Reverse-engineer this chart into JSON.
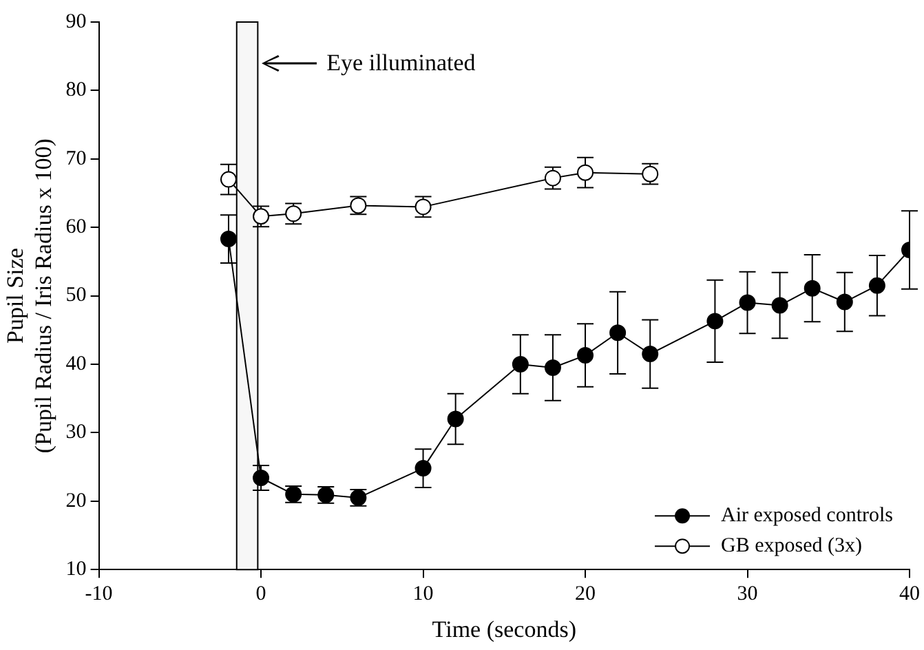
{
  "chart_data": {
    "type": "line",
    "xlabel": "Time (seconds)",
    "ylabel": "Pupil Size\n(Pupil Radius / Iris Radius x 100)",
    "xlim": [
      -10,
      40
    ],
    "xticks": [
      -10,
      0,
      10,
      20,
      30,
      40
    ],
    "ylim": [
      10,
      90
    ],
    "yticks": [
      10,
      20,
      30,
      40,
      50,
      60,
      70,
      80,
      90
    ],
    "grid": false,
    "legend": "bottom right",
    "marker": "circle",
    "line_style": "solid",
    "series": [
      {
        "name": "Air exposed controls",
        "color": "#000000",
        "x": [
          -2,
          0,
          2,
          4,
          6,
          10,
          12,
          16,
          18,
          20,
          22,
          24,
          28,
          30,
          32,
          34,
          36,
          38,
          40
        ],
        "values": [
          58.3,
          23.4,
          21,
          20.9,
          20.5,
          24.8,
          32,
          40,
          39.5,
          41.3,
          44.6,
          41.5,
          46.3,
          49,
          48.6,
          51.1,
          49.1,
          51.5,
          56.7
        ],
        "errors": [
          3.5,
          1.8,
          1.2,
          1.2,
          1.2,
          2.8,
          3.7,
          4.3,
          4.8,
          4.6,
          6,
          5,
          6,
          4.5,
          4.8,
          4.9,
          4.3,
          4.4,
          5.7
        ]
      },
      {
        "name": "GB exposed (3x)",
        "color": "#ffffff",
        "x": [
          -2,
          0,
          2,
          6,
          10,
          18,
          20,
          24
        ],
        "values": [
          67,
          61.6,
          62,
          63.2,
          63,
          67.2,
          68,
          67.8
        ],
        "errors": [
          2.2,
          1.5,
          1.5,
          1.3,
          1.5,
          1.6,
          2.2,
          1.5
        ]
      }
    ],
    "bands": [
      {
        "axis": "x",
        "from": -1.5,
        "to": -0.2,
        "color": "#f7f7f7"
      }
    ],
    "annotations": [
      "Eye illuminated"
    ]
  }
}
